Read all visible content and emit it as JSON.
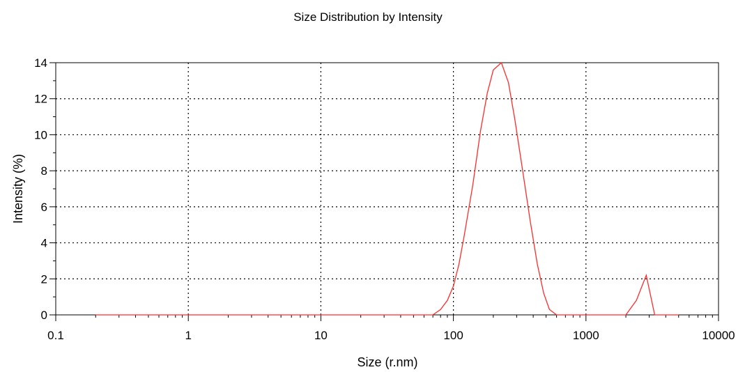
{
  "chart_data": {
    "type": "line",
    "title": "Size Distribution by Intensity",
    "xlabel": "Size (r.nm)",
    "ylabel": "Intensity (%)",
    "x_scale": "log",
    "xlim": [
      0.1,
      10000
    ],
    "ylim": [
      0,
      14
    ],
    "x_ticks": [
      0.1,
      1,
      10,
      100,
      1000,
      10000
    ],
    "x_tick_labels": [
      "0.1",
      "1",
      "10",
      "100",
      "1000",
      "10000"
    ],
    "y_ticks": [
      0,
      2,
      4,
      6,
      8,
      10,
      12,
      14
    ],
    "y_tick_labels": [
      "0",
      "2",
      "4",
      "6",
      "8",
      "10",
      "12",
      "14"
    ],
    "grid": true,
    "line_color": "#ff2a2a",
    "series": [
      {
        "x": [
          0.2,
          0.5,
          1,
          5,
          10,
          50,
          70,
          80,
          90,
          100,
          110,
          120,
          140,
          160,
          180,
          200,
          230,
          260,
          290,
          330,
          380,
          430,
          480,
          530,
          600,
          700,
          1000,
          1600,
          2000,
          2400,
          2850,
          3300,
          4000,
          5000
        ],
        "y": [
          0,
          0,
          0,
          0,
          0,
          0,
          0,
          0.3,
          0.8,
          1.6,
          2.8,
          4.3,
          7.2,
          10.2,
          12.3,
          13.6,
          14.0,
          12.9,
          10.9,
          8.2,
          5.2,
          2.8,
          1.2,
          0.3,
          0,
          0,
          0,
          0,
          0,
          0.8,
          2.2,
          0,
          0,
          0
        ]
      }
    ]
  }
}
